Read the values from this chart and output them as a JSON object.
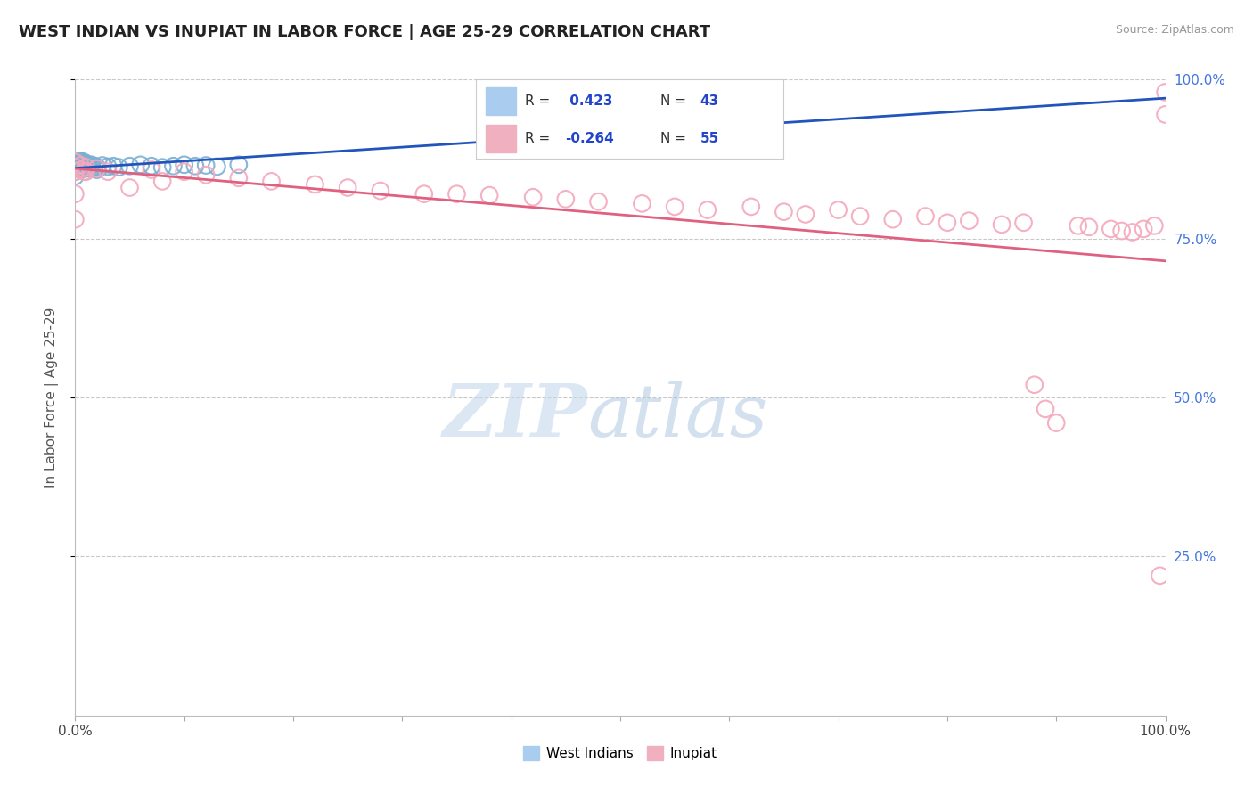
{
  "title": "WEST INDIAN VS INUPIAT IN LABOR FORCE | AGE 25-29 CORRELATION CHART",
  "source_text": "Source: ZipAtlas.com",
  "ylabel": "In Labor Force | Age 25-29",
  "xlim": [
    0.0,
    1.0
  ],
  "ylim": [
    0.0,
    1.0
  ],
  "blue_color": "#7bafd4",
  "pink_color": "#f4a8bc",
  "line_blue_color": "#2255bb",
  "line_pink_color": "#e06080",
  "legend_r_blue": " 0.423",
  "legend_n_blue": "43",
  "legend_r_pink": "-0.264",
  "legend_n_pink": "55",
  "wi_x": [
    0.0,
    0.0,
    0.0,
    0.002,
    0.003,
    0.004,
    0.005,
    0.005,
    0.005,
    0.005,
    0.006,
    0.006,
    0.007,
    0.007,
    0.008,
    0.008,
    0.009,
    0.009,
    0.01,
    0.01,
    0.011,
    0.012,
    0.013,
    0.015,
    0.015,
    0.018,
    0.02,
    0.02,
    0.025,
    0.03,
    0.035,
    0.04,
    0.05,
    0.06,
    0.07,
    0.08,
    0.09,
    0.1,
    0.11,
    0.12,
    0.13,
    0.15,
    0.5
  ],
  "wi_y": [
    0.862,
    0.855,
    0.848,
    0.87,
    0.865,
    0.86,
    0.872,
    0.868,
    0.864,
    0.858,
    0.871,
    0.866,
    0.869,
    0.863,
    0.87,
    0.862,
    0.866,
    0.86,
    0.868,
    0.862,
    0.864,
    0.865,
    0.862,
    0.866,
    0.86,
    0.864,
    0.862,
    0.858,
    0.865,
    0.863,
    0.864,
    0.862,
    0.864,
    0.866,
    0.864,
    0.862,
    0.864,
    0.866,
    0.864,
    0.865,
    0.863,
    0.866,
    0.93
  ],
  "inp_x": [
    0.0,
    0.0,
    0.0,
    0.0,
    0.0,
    0.005,
    0.005,
    0.008,
    0.01,
    0.01,
    0.02,
    0.03,
    0.05,
    0.07,
    0.08,
    0.1,
    0.12,
    0.15,
    0.18,
    0.22,
    0.25,
    0.28,
    0.32,
    0.35,
    0.38,
    0.42,
    0.45,
    0.48,
    0.52,
    0.55,
    0.58,
    0.62,
    0.65,
    0.67,
    0.7,
    0.72,
    0.75,
    0.78,
    0.8,
    0.82,
    0.85,
    0.87,
    0.88,
    0.89,
    0.9,
    0.92,
    0.93,
    0.95,
    0.96,
    0.97,
    0.98,
    0.99,
    0.995,
    1.0,
    1.0
  ],
  "inp_y": [
    0.87,
    0.862,
    0.855,
    0.82,
    0.78,
    0.865,
    0.858,
    0.855,
    0.862,
    0.855,
    0.86,
    0.855,
    0.83,
    0.858,
    0.84,
    0.855,
    0.85,
    0.845,
    0.84,
    0.835,
    0.83,
    0.825,
    0.82,
    0.82,
    0.818,
    0.815,
    0.812,
    0.808,
    0.805,
    0.8,
    0.795,
    0.8,
    0.792,
    0.788,
    0.795,
    0.785,
    0.78,
    0.785,
    0.775,
    0.778,
    0.772,
    0.775,
    0.52,
    0.482,
    0.46,
    0.77,
    0.768,
    0.765,
    0.762,
    0.76,
    0.765,
    0.77,
    0.22,
    0.98,
    0.945
  ]
}
